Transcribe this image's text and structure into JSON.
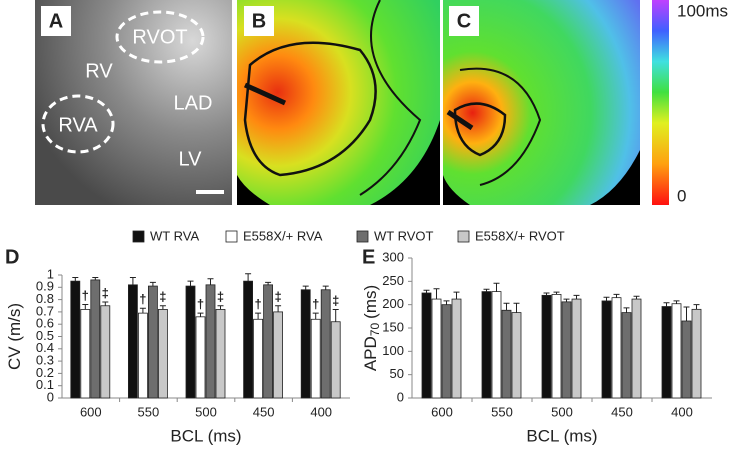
{
  "panels": {
    "a": {
      "label": "A",
      "texts": [
        "RVOT",
        "RV",
        "LAD",
        "RVA",
        "LV"
      ]
    },
    "b": {
      "label": "B"
    },
    "c": {
      "label": "C"
    },
    "colorbar": {
      "max": "100ms",
      "min": "0"
    }
  },
  "legend": [
    {
      "name": "WT RVA",
      "color": "#111111"
    },
    {
      "name": "E558X/+ RVA",
      "color": "#ffffff"
    },
    {
      "name": "WT RVOT",
      "color": "#6e6e6e"
    },
    {
      "name": "E558X/+ RVOT",
      "color": "#c8c8c8"
    }
  ],
  "chart_data": [
    {
      "type": "bar",
      "panel_label": "D",
      "ylabel": "CV (m/s)",
      "xlabel": "BCL (ms)",
      "categories": [
        "600",
        "550",
        "500",
        "450",
        "400"
      ],
      "ylim": [
        0,
        1
      ],
      "yticks": [
        0,
        0.1,
        0.2,
        0.3,
        0.4,
        0.5,
        0.6,
        0.7,
        0.8,
        0.9,
        1
      ],
      "series": [
        {
          "values": [
            0.95,
            0.92,
            0.91,
            0.95,
            0.88
          ],
          "errors": [
            0.03,
            0.06,
            0.04,
            0.06,
            0.03
          ]
        },
        {
          "values": [
            0.72,
            0.69,
            0.66,
            0.64,
            0.64
          ],
          "errors": [
            0.04,
            0.04,
            0.03,
            0.05,
            0.05
          ],
          "markers": [
            "†",
            "†",
            "†",
            "†",
            "†"
          ]
        },
        {
          "values": [
            0.96,
            0.91,
            0.92,
            0.92,
            0.88
          ],
          "errors": [
            0.02,
            0.03,
            0.05,
            0.02,
            0.03
          ]
        },
        {
          "values": [
            0.75,
            0.72,
            0.72,
            0.7,
            0.62
          ],
          "errors": [
            0.03,
            0.03,
            0.03,
            0.05,
            0.1
          ],
          "markers": [
            "‡",
            "‡",
            "‡",
            "‡",
            "‡"
          ]
        }
      ]
    },
    {
      "type": "bar",
      "panel_label": "E",
      "ylabel": "APD",
      "ylabel_sub": "70",
      "ylabel_unit": "(ms)",
      "xlabel": "BCL (ms)",
      "categories": [
        "600",
        "550",
        "500",
        "450",
        "400"
      ],
      "ylim": [
        0,
        300
      ],
      "yticks": [
        0,
        50,
        100,
        150,
        200,
        250,
        300
      ],
      "series": [
        {
          "values": [
            225,
            228,
            220,
            208,
            196
          ],
          "errors": [
            6,
            5,
            5,
            8,
            8
          ]
        },
        {
          "values": [
            212,
            228,
            222,
            215,
            202
          ],
          "errors": [
            22,
            18,
            5,
            7,
            6
          ]
        },
        {
          "values": [
            200,
            188,
            206,
            183,
            165
          ],
          "errors": [
            8,
            15,
            6,
            10,
            30
          ]
        },
        {
          "values": [
            212,
            183,
            212,
            212,
            190
          ],
          "errors": [
            15,
            20,
            8,
            6,
            10
          ]
        }
      ]
    }
  ]
}
